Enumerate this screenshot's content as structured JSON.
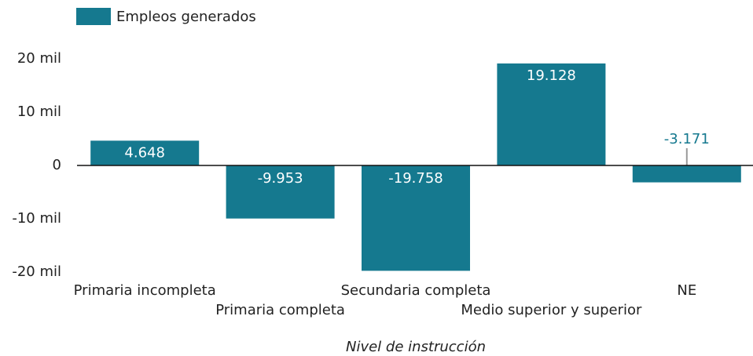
{
  "chart_data": {
    "type": "bar",
    "legend": "Empleos generados",
    "x_label": "Nivel de instrucción",
    "categories": [
      "Primaria incompleta",
      "Primaria completa",
      "Secundaria completa",
      "Medio superior y superior",
      "NE"
    ],
    "values": [
      4648,
      -9953,
      -19758,
      19128,
      -3171
    ],
    "value_labels": [
      "4.648",
      "-9.953",
      "-19.758",
      "19.128",
      "-3.171"
    ],
    "color": "#15798f",
    "ylim": [
      -20000,
      20000
    ],
    "yticks": [
      {
        "value": -20000,
        "label": "-20 mil"
      },
      {
        "value": -10000,
        "label": "-10 mil"
      },
      0,
      {
        "value": 10000,
        "label": "10 mil"
      },
      {
        "value": 20000,
        "label": "20 mil"
      }
    ],
    "grid": false
  }
}
